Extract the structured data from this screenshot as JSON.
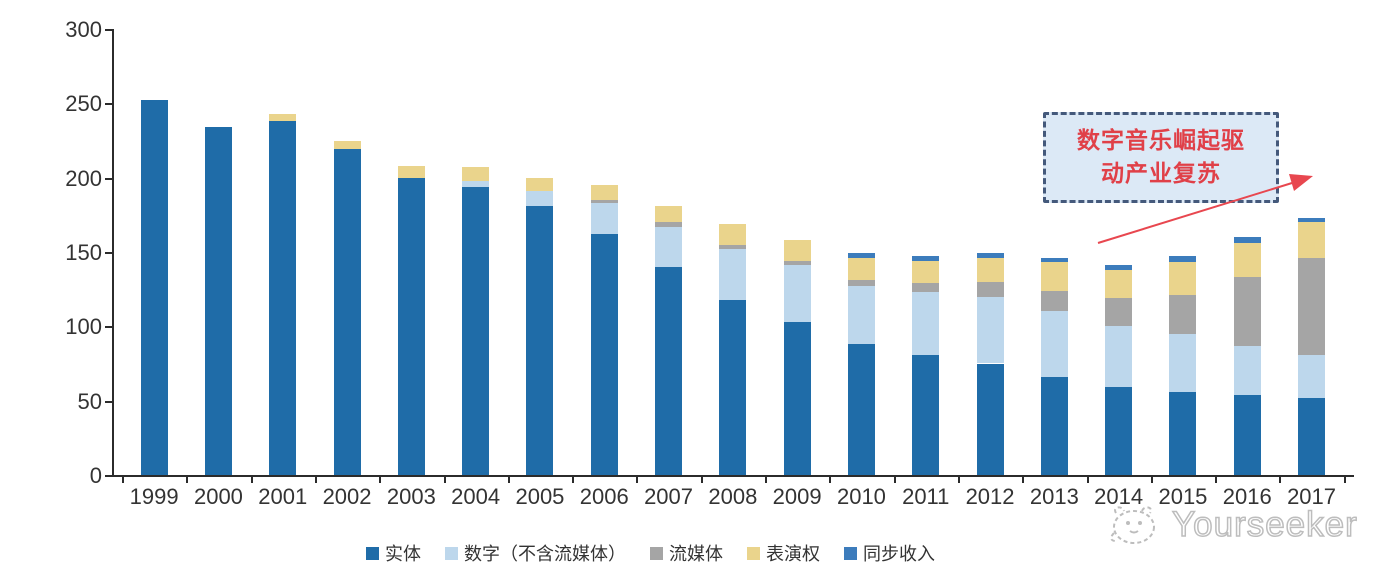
{
  "chart_data": {
    "type": "bar",
    "stacked": true,
    "title": "",
    "xlabel": "",
    "ylabel": "",
    "categories": [
      "1999",
      "2000",
      "2001",
      "2002",
      "2003",
      "2004",
      "2005",
      "2006",
      "2007",
      "2008",
      "2009",
      "2010",
      "2011",
      "2012",
      "2013",
      "2014",
      "2015",
      "2016",
      "2017"
    ],
    "series": [
      {
        "name": "实体",
        "color": "#1F6CA8",
        "values": [
          252,
          234,
          238,
          219,
          200,
          194,
          181,
          162,
          140,
          118,
          103,
          88,
          81,
          75,
          66,
          59,
          56,
          54,
          52
        ]
      },
      {
        "name": "数字（不含流媒体）",
        "color": "#BDD7EC",
        "values": [
          0,
          0,
          0,
          0,
          0,
          4,
          10,
          21,
          27,
          34,
          38,
          39,
          42,
          45,
          44,
          41,
          39,
          33,
          29
        ]
      },
      {
        "name": "流媒体",
        "color": "#A5A5A5",
        "values": [
          0,
          0,
          0,
          0,
          0,
          0,
          0,
          2,
          3,
          3,
          3,
          4,
          6,
          10,
          14,
          19,
          26,
          46,
          65
        ]
      },
      {
        "name": "表演权",
        "color": "#EAD48C",
        "values": [
          0,
          0,
          5,
          6,
          8,
          9,
          9,
          10,
          11,
          14,
          14,
          15,
          15,
          16,
          19,
          19,
          22,
          23,
          24
        ]
      },
      {
        "name": "同步收入",
        "color": "#3C7CBC",
        "values": [
          0,
          0,
          0,
          0,
          0,
          0,
          0,
          0,
          0,
          0,
          0,
          3,
          3,
          3,
          3,
          3,
          4,
          4,
          3
        ]
      }
    ],
    "ylim": [
      0,
      300
    ],
    "yticks": [
      0,
      50,
      100,
      150,
      200,
      250,
      300
    ],
    "grid": false,
    "legend_position": "bottom"
  },
  "annotation": {
    "line1": "数字音乐崛起驱",
    "line2": "动产业复苏",
    "text_color": "#E04048",
    "box_fill": "#DCE9F6",
    "box_border": "#44597B",
    "arrow_color": "#E8474F"
  },
  "watermark": {
    "text": "Yourseeker",
    "logo": "mascot-face-icon",
    "color": "#BDBDBD"
  },
  "axis_color": "#2B2B2B"
}
